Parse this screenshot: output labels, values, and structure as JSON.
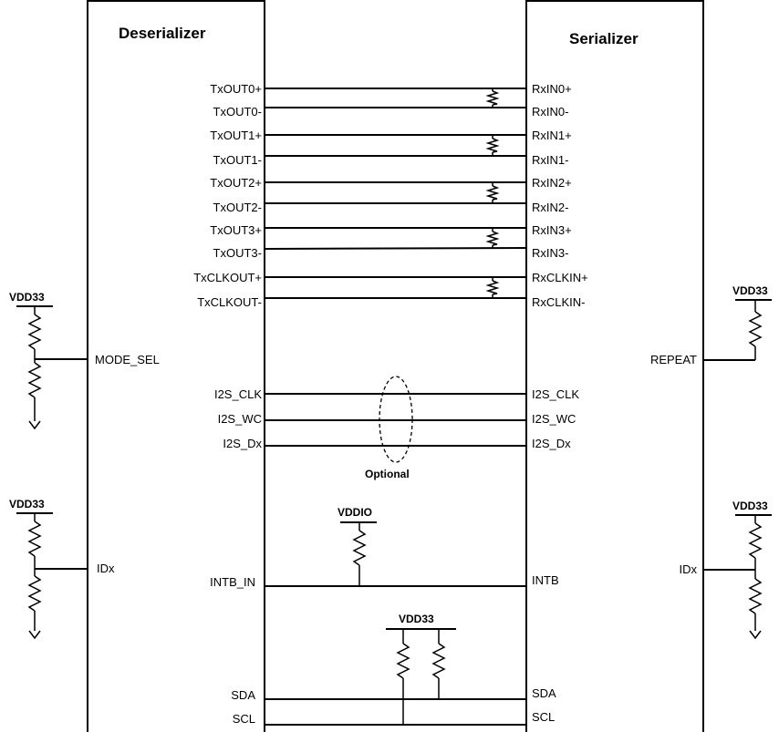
{
  "deserializer": {
    "title": "Deserializer",
    "outputs": [
      "TxOUT0+",
      "TxOUT0-",
      "TxOUT1+",
      "TxOUT1-",
      "TxOUT2+",
      "TxOUT2-",
      "TxOUT3+",
      "TxOUT3-",
      "TxCLKOUT+",
      "TxCLKOUT-"
    ],
    "mode_sel": "MODE_SEL",
    "i2s": [
      "I2S_CLK",
      "I2S_WC",
      "I2S_Dx"
    ],
    "idx": "IDx",
    "intb_in": "INTB_IN",
    "sda": "SDA",
    "scl": "SCL"
  },
  "serializer": {
    "title": "Serializer",
    "inputs": [
      "RxIN0+",
      "RxIN0-",
      "RxIN1+",
      "RxIN1-",
      "RxIN2+",
      "RxIN2-",
      "RxIN3+",
      "RxIN3-",
      "RxCLKIN+",
      "RxCLKIN-"
    ],
    "repeat": "REPEAT",
    "i2s": [
      "I2S_CLK",
      "I2S_WC",
      "I2S_Dx"
    ],
    "idx": "IDx",
    "intb": "INTB",
    "sda": "SDA",
    "scl": "SCL"
  },
  "rails": {
    "mode_sel": "VDD33",
    "repeat": "VDD33",
    "des_idx": "VDD33",
    "ser_idx": "VDD33",
    "intb": "VDDIO",
    "i2c": "VDD33"
  },
  "optional_label": "Optional"
}
